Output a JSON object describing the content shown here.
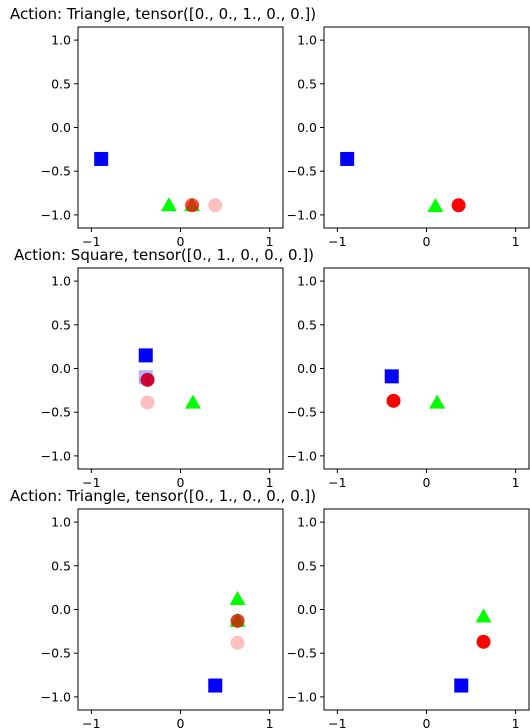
{
  "chart_data": [
    {
      "type": "scatter",
      "title": "Action: Triangle, tensor([0., 0., 1., 0., 0.])",
      "xlim": [
        -1.15,
        1.15
      ],
      "ylim": [
        -1.15,
        1.15
      ],
      "xticks": [
        "−1",
        "0",
        "1"
      ],
      "xtick_values": [
        -1,
        0,
        1
      ],
      "yticks": [
        "1.0",
        "0.5",
        "0.0",
        "−0.5",
        "−1.0"
      ],
      "ytick_values": [
        1.0,
        0.5,
        0.0,
        -0.5,
        -1.0
      ],
      "grid": false,
      "left_panel": [
        {
          "shape": "circle",
          "color": "#ff0000",
          "alpha": 0.25,
          "x": 0.39,
          "y": -0.89
        },
        {
          "shape": "triangle",
          "color": "#00ff00",
          "alpha": 1.0,
          "x": -0.13,
          "y": -0.89
        },
        {
          "shape": "triangle",
          "color": "#00ff00",
          "alpha": 1.0,
          "x": 0.13,
          "y": -0.89
        },
        {
          "shape": "square",
          "color": "#0000ff",
          "alpha": 1.0,
          "x": -0.89,
          "y": -0.36
        },
        {
          "shape": "circle",
          "color": "#ff0000",
          "alpha": 0.75,
          "x": 0.13,
          "y": -0.89
        }
      ],
      "right_panel": [
        {
          "shape": "triangle",
          "color": "#00ff00",
          "alpha": 1.0,
          "x": 0.1,
          "y": -0.9
        },
        {
          "shape": "circle",
          "color": "#ff0000",
          "alpha": 1.0,
          "x": 0.36,
          "y": -0.89
        },
        {
          "shape": "square",
          "color": "#0000ff",
          "alpha": 1.0,
          "x": -0.89,
          "y": -0.36
        }
      ]
    },
    {
      "type": "scatter",
      "title": "Action: Square, tensor([0., 1., 0., 0., 0.])",
      "xlim": [
        -1.15,
        1.15
      ],
      "ylim": [
        -1.15,
        1.15
      ],
      "xticks": [
        "−1",
        "0",
        "1"
      ],
      "xtick_values": [
        -1,
        0,
        1
      ],
      "yticks": [
        "1.0",
        "0.5",
        "0.0",
        "−0.5",
        "−1.0"
      ],
      "ytick_values": [
        1.0,
        0.5,
        0.0,
        -0.5,
        -1.0
      ],
      "grid": false,
      "left_panel": [
        {
          "shape": "circle",
          "color": "#ff0000",
          "alpha": 0.25,
          "x": -0.37,
          "y": -0.39
        },
        {
          "shape": "square",
          "color": "#0000ff",
          "alpha": 0.3,
          "x": -0.39,
          "y": -0.1
        },
        {
          "shape": "square",
          "color": "#0000ff",
          "alpha": 1.0,
          "x": -0.39,
          "y": 0.15
        },
        {
          "shape": "triangle",
          "color": "#00ff00",
          "alpha": 1.0,
          "x": 0.14,
          "y": -0.39
        },
        {
          "shape": "circle",
          "color": "#cc0033",
          "alpha": 1.0,
          "x": -0.37,
          "y": -0.13
        }
      ],
      "right_panel": [
        {
          "shape": "square",
          "color": "#0000ff",
          "alpha": 1.0,
          "x": -0.39,
          "y": -0.09
        },
        {
          "shape": "circle",
          "color": "#ff0000",
          "alpha": 1.0,
          "x": -0.37,
          "y": -0.37
        },
        {
          "shape": "triangle",
          "color": "#00ff00",
          "alpha": 1.0,
          "x": 0.12,
          "y": -0.39
        }
      ]
    },
    {
      "type": "scatter",
      "title": "Action: Triangle, tensor([0., 1., 0., 0., 0.])",
      "xlim": [
        -1.15,
        1.15
      ],
      "ylim": [
        -1.15,
        1.15
      ],
      "xticks": [
        "−1",
        "0",
        "1"
      ],
      "xtick_values": [
        -1,
        0,
        1
      ],
      "yticks": [
        "1.0",
        "0.5",
        "0.0",
        "−0.5",
        "−1.0"
      ],
      "ytick_values": [
        1.0,
        0.5,
        0.0,
        -0.5,
        -1.0
      ],
      "grid": false,
      "left_panel": [
        {
          "shape": "circle",
          "color": "#ff0000",
          "alpha": 0.25,
          "x": 0.64,
          "y": -0.38
        },
        {
          "shape": "triangle",
          "color": "#00ff00",
          "alpha": 1.0,
          "x": 0.64,
          "y": 0.12
        },
        {
          "shape": "triangle",
          "color": "#00ff00",
          "alpha": 1.0,
          "x": 0.64,
          "y": -0.13
        },
        {
          "shape": "circle",
          "color": "#cc2200",
          "alpha": 0.85,
          "x": 0.64,
          "y": -0.13
        },
        {
          "shape": "square",
          "color": "#0000ff",
          "alpha": 1.0,
          "x": 0.39,
          "y": -0.87
        }
      ],
      "right_panel": [
        {
          "shape": "triangle",
          "color": "#00ff00",
          "alpha": 1.0,
          "x": 0.64,
          "y": -0.08
        },
        {
          "shape": "circle",
          "color": "#ff0000",
          "alpha": 1.0,
          "x": 0.64,
          "y": -0.37
        },
        {
          "shape": "square",
          "color": "#0000ff",
          "alpha": 1.0,
          "x": 0.39,
          "y": -0.87
        }
      ]
    }
  ]
}
